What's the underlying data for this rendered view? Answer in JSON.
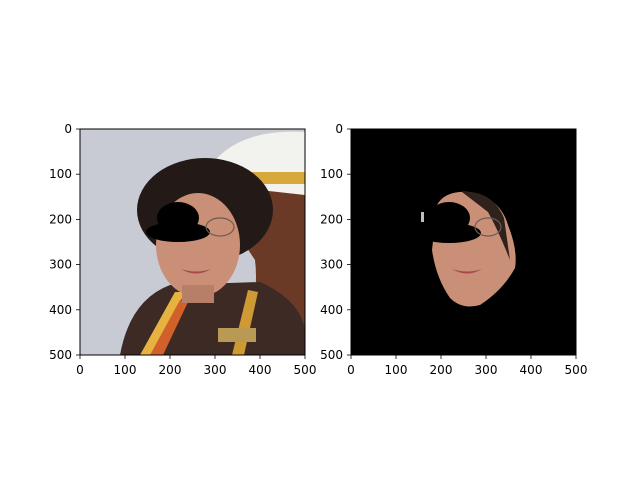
{
  "chart_data": [
    {
      "type": "image",
      "xlim": [
        0,
        500
      ],
      "ylim": [
        500,
        0
      ],
      "xticks": [
        0,
        100,
        200,
        300,
        400,
        500
      ],
      "yticks": [
        0,
        100,
        200,
        300,
        400,
        500
      ],
      "content": "photo"
    },
    {
      "type": "image",
      "xlim": [
        0,
        500
      ],
      "ylim": [
        500,
        0
      ],
      "xticks": [
        0,
        100,
        200,
        300,
        400,
        500
      ],
      "yticks": [
        0,
        100,
        200,
        300,
        400,
        500
      ],
      "content": "face-mask"
    }
  ],
  "colors": {
    "background": "#ffffff",
    "mask_background": "#000000",
    "axis": "#000000",
    "photo_sky": "#c9cbd4",
    "skin": "#c99077",
    "hair": "#231a17",
    "uniform": "#3d2a25",
    "helmet": "#f2f2ee",
    "stripe": "#d8a93a"
  }
}
